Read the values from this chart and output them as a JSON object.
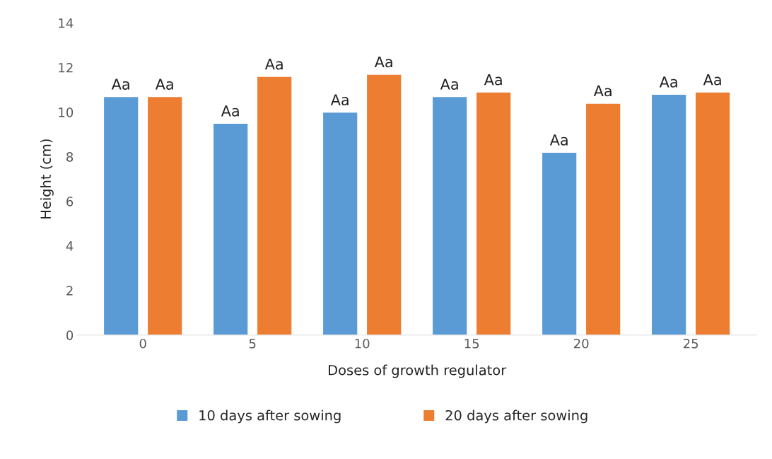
{
  "chart_data": {
    "type": "bar",
    "xlabel": "Doses of growth regulator",
    "ylabel": "Height (cm)",
    "categories": [
      "0",
      "5",
      "10",
      "15",
      "20",
      "25"
    ],
    "series": [
      {
        "name": "10 days after sowing",
        "color": "#5b9bd5",
        "values": [
          10.7,
          9.5,
          10.0,
          10.7,
          8.2,
          10.8
        ],
        "value_labels": [
          "Aa",
          "Aa",
          "Aa",
          "Aa",
          "Aa",
          "Aa"
        ]
      },
      {
        "name": "20 days after sowing",
        "color": "#ed7d31",
        "values": [
          10.7,
          11.6,
          11.7,
          10.9,
          10.4,
          10.9
        ],
        "value_labels": [
          "Aa",
          "Aa",
          "Aa",
          "Aa",
          "Aa",
          "Aa"
        ]
      }
    ],
    "ylim": [
      0,
      14
    ],
    "yticks": [
      0,
      2,
      4,
      6,
      8,
      10,
      12,
      14
    ],
    "grid": false,
    "legend": "bottom"
  }
}
